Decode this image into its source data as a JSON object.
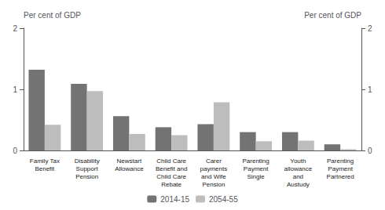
{
  "chart_data": {
    "type": "bar",
    "categories": [
      "Family Tax\nBenefit",
      "Disability\nSupport\nPension",
      "Newstart\nAllowance",
      "Child Care\nBenefit and\nChild Care\nRebate",
      "Carer\npayments\nand Wife\nPension",
      "Parenting\nPayment\nSingle",
      "Youth\nallowance\nand\nAustudy",
      "Parenting\nPayment\nPartnered"
    ],
    "series": [
      {
        "name": "2014-15",
        "color": "#737373",
        "values": [
          1.32,
          1.09,
          0.56,
          0.38,
          0.43,
          0.3,
          0.3,
          0.1
        ]
      },
      {
        "name": "2054-55",
        "color": "#bdbdbd",
        "values": [
          0.42,
          0.97,
          0.27,
          0.25,
          0.79,
          0.15,
          0.16,
          0.02
        ]
      }
    ],
    "ylabel": "Per cent of GDP",
    "ylim": [
      0,
      2
    ],
    "yticks": [
      0,
      1,
      2
    ],
    "y2label": "Per cent of GDP",
    "y2lim": [
      0,
      2
    ],
    "y2ticks": [
      0,
      1,
      2
    ],
    "grid": false,
    "legend": "bottom"
  }
}
